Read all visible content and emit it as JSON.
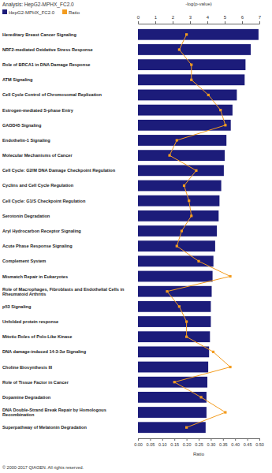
{
  "chart_data": {
    "type": "bar",
    "orientation": "horizontal",
    "title": "Analysis: HepG2-MPHX_FC2.0",
    "y_label": "-log(p-value)",
    "y2_label": "Ratio",
    "footnote": "© 2000-2017 QIAGEN. All rights reserved.",
    "legend": "top-left",
    "grid": false,
    "categories": [
      "Hereditary Breast Cancer Signaling",
      "NRF2-mediated Oxidative Stress Response",
      "Role of BRCA1 in DNA Damage Response",
      "ATM Signaling",
      "Cell Cycle Control of Chromosomal Replication",
      "Estrogen-mediated S-phase Entry",
      "GADD45 Signaling",
      "Endothelin-1 Signaling",
      "Molecular Mechanisms of Cancer",
      "Cell Cycle: G2/M DNA Damage Checkpoint Regulation",
      "Cyclins and Cell Cycle Regulation",
      "Cell Cycle: G1/S Checkpoint Regulation",
      "Serotonin Degradation",
      "Aryl Hydrocarbon Receptor Signaling",
      "Acute Phase Response Signaling",
      "Complement System",
      "Mismatch Repair in Eukaryotes",
      "Role of Macrophages, Fibroblasts and Endothelial Cells in Rheumatoid Arthritis",
      "p53 Signaling",
      "Unfolded protein response",
      "Mitotic Roles of Polo-Like Kinase",
      "DNA damage-induced 14-3-3σ Signaling",
      "Choline Biosynthesis III",
      "Role of Tissue Factor in Cancer",
      "Dopamine Degradation",
      "DNA Double-Strand Break Repair by Homologous Recombination",
      "Superpathway of Melatonin Degradation"
    ],
    "series": [
      {
        "name": "HepG2-MPHX_FC2.0",
        "type": "bar",
        "color": "#1c1c7a",
        "values": [
          6.95,
          6.5,
          6.2,
          6.15,
          5.7,
          5.45,
          5.35,
          5.1,
          5.0,
          4.95,
          4.8,
          4.7,
          4.65,
          4.55,
          4.45,
          4.35,
          4.3,
          4.25,
          4.2,
          4.2,
          4.15,
          4.1,
          4.05,
          4.0,
          3.95,
          3.95,
          3.9
        ]
      },
      {
        "name": "Ratio",
        "type": "line",
        "axis": "y2",
        "marker": "square",
        "color": "#f39c1f",
        "values": [
          0.2,
          0.17,
          0.22,
          0.22,
          0.29,
          0.34,
          0.36,
          0.16,
          0.13,
          0.24,
          0.19,
          0.21,
          0.22,
          0.18,
          0.16,
          0.25,
          0.38,
          0.12,
          0.17,
          0.2,
          0.2,
          0.31,
          0.38,
          0.15,
          0.26,
          0.36,
          0.2
        ]
      }
    ],
    "ylim": [
      0,
      7
    ],
    "yticks": [
      0,
      1,
      2,
      3,
      4,
      5,
      6,
      7
    ],
    "y2lim": [
      0,
      0.5
    ],
    "y2ticks": [
      {
        "value": 0,
        "label": "0.00"
      },
      {
        "value": 0.05,
        "label": "0.05"
      },
      {
        "value": 0.1,
        "label": "0.10"
      },
      {
        "value": 0.15,
        "label": "0.15"
      },
      {
        "value": 0.2,
        "label": "0.20"
      },
      {
        "value": 0.25,
        "label": "0.25"
      },
      {
        "value": 0.3,
        "label": "0.30"
      },
      {
        "value": 0.35,
        "label": "0.35"
      },
      {
        "value": 0.4,
        "label": "0.40"
      },
      {
        "value": 0.45,
        "label": "0.45"
      },
      {
        "value": 0.5,
        "label": "0.50"
      }
    ]
  }
}
